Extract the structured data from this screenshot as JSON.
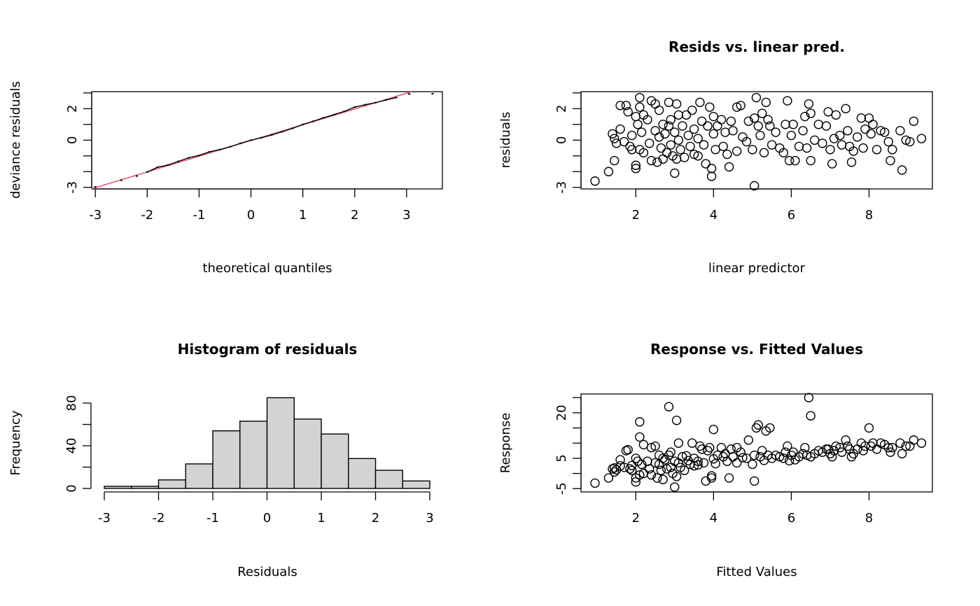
{
  "chart_data": [
    {
      "type": "line",
      "title": "",
      "xlabel": "theoretical quantiles",
      "ylabel": "deviance residuals",
      "xlim": [
        -3.07,
        3.69
      ],
      "ylim": [
        -3.1,
        3.08
      ],
      "xticks": [
        -3,
        -2,
        -1,
        0,
        1,
        2,
        3
      ],
      "xticklabels": [
        "-3",
        "-2",
        "-1",
        "0",
        "1",
        "2",
        "3"
      ],
      "yticks": [
        -3,
        -2,
        -1,
        0,
        1,
        2,
        3
      ],
      "yticklabels": {
        "-3": "-3",
        "0": "0",
        "2": "2"
      },
      "reference_line": {
        "intercept": -0.02,
        "slope": 1.0,
        "color": "#DF536B"
      },
      "points": [
        [
          -3.0,
          -2.97
        ],
        [
          -2.5,
          -2.55
        ],
        [
          -2.2,
          -2.28
        ],
        [
          -2.0,
          -2.03
        ],
        [
          -1.8,
          -1.72
        ],
        [
          -1.6,
          -1.58
        ],
        [
          -1.4,
          -1.35
        ],
        [
          -1.2,
          -1.12
        ],
        [
          -1.0,
          -0.97
        ],
        [
          -0.8,
          -0.74
        ],
        [
          -0.6,
          -0.6
        ],
        [
          -0.4,
          -0.42
        ],
        [
          -0.2,
          -0.2
        ],
        [
          0,
          0.0
        ],
        [
          0.2,
          0.15
        ],
        [
          0.4,
          0.33
        ],
        [
          0.6,
          0.53
        ],
        [
          0.8,
          0.75
        ],
        [
          1.0,
          1.0
        ],
        [
          1.2,
          1.2
        ],
        [
          1.4,
          1.42
        ],
        [
          1.6,
          1.62
        ],
        [
          1.8,
          1.83
        ],
        [
          2.0,
          2.1
        ],
        [
          2.2,
          2.25
        ],
        [
          2.4,
          2.38
        ],
        [
          2.6,
          2.55
        ],
        [
          2.8,
          2.7
        ],
        [
          3.05,
          2.93
        ],
        [
          3.5,
          2.95
        ]
      ]
    },
    {
      "type": "scatter",
      "title": "Resids vs. linear pred.",
      "xlabel": "linear predictor",
      "ylabel": "residuals",
      "xlim": [
        0.59,
        9.63
      ],
      "ylim": [
        -3.1,
        3.08
      ],
      "xticks": [
        2,
        4,
        6,
        8
      ],
      "xticklabels": [
        "2",
        "4",
        "6",
        "8"
      ],
      "yticks": [
        -3,
        -2,
        -1,
        0,
        1,
        2,
        3
      ],
      "yticklabels": {
        "-3": "-3",
        "0": "0",
        "2": "2"
      }
    },
    {
      "type": "bar",
      "title": "Histogram of residuals",
      "xlabel": "Residuals",
      "ylabel": "Frequency",
      "bin_edges": [
        -3,
        -2.5,
        -2,
        -1.5,
        -1,
        -0.5,
        0,
        0.5,
        1,
        1.5,
        2,
        2.5,
        3
      ],
      "values": [
        2,
        2,
        8,
        23,
        54,
        63,
        85,
        65,
        51,
        28,
        17,
        7
      ],
      "bar_color": "#D3D3D3",
      "xlim": [
        -3,
        3
      ],
      "ylim": [
        0,
        80
      ],
      "xticks": [
        -3,
        -2,
        -1,
        0,
        1,
        2,
        3
      ],
      "xticklabels": [
        "-3",
        "-2",
        "-1",
        "0",
        "1",
        "2",
        "3"
      ],
      "yticks": [
        0,
        20,
        40,
        60,
        80
      ],
      "yticklabels": {
        "0": "0",
        "40": "40",
        "80": "80"
      }
    },
    {
      "type": "scatter",
      "title": "Response vs. Fitted Values",
      "xlabel": "Fitted Values",
      "ylabel": "Response",
      "xlim": [
        0.59,
        9.63
      ],
      "ylim": [
        -6.1,
        26.2
      ],
      "xticks": [
        2,
        4,
        6,
        8
      ],
      "xticklabels": [
        "2",
        "4",
        "6",
        "8"
      ],
      "yticks": [
        -5,
        0,
        5,
        10,
        15,
        20,
        25
      ],
      "yticklabels": {
        "-5": "-5",
        "5": "5",
        "20": "20"
      }
    }
  ],
  "observations_fitted_resid_response": [
    [
      0.95,
      -2.6,
      -3.2
    ],
    [
      1.3,
      -2.0,
      -1.5
    ],
    [
      1.45,
      -1.3,
      0.5
    ],
    [
      1.4,
      0.4,
      1.5
    ],
    [
      1.45,
      0.1,
      1.8
    ],
    [
      1.5,
      -0.2,
      1.2
    ],
    [
      1.6,
      2.2,
      4.5
    ],
    [
      1.6,
      0.7,
      2.5
    ],
    [
      1.7,
      -0.1,
      2.0
    ],
    [
      1.75,
      2.2,
      7.5
    ],
    [
      1.8,
      1.8,
      7.8
    ],
    [
      1.85,
      -0.4,
      1.5
    ],
    [
      1.9,
      -0.6,
      1.0
    ],
    [
      1.9,
      0.3,
      2.6
    ],
    [
      2.0,
      -1.6,
      -2.8
    ],
    [
      2.0,
      -1.8,
      -1.5
    ],
    [
      2.0,
      1.5,
      5
    ],
    [
      2.05,
      1.0,
      4
    ],
    [
      2.1,
      2.1,
      12
    ],
    [
      2.1,
      2.7,
      17
    ],
    [
      2.1,
      -0.6,
      -0.5
    ],
    [
      2.15,
      0.5,
      3
    ],
    [
      2.2,
      -0.8,
      0
    ],
    [
      2.2,
      1.6,
      9.5
    ],
    [
      2.3,
      1.3,
      4
    ],
    [
      2.35,
      -0.2,
      1.5
    ],
    [
      2.4,
      2.5,
      8.5
    ],
    [
      2.4,
      -1.3,
      -0.5
    ],
    [
      2.5,
      0.6,
      3.5
    ],
    [
      2.5,
      2.3,
      9
    ],
    [
      2.55,
      -1.4,
      -1.5
    ],
    [
      2.6,
      1.9,
      6
    ],
    [
      2.6,
      0.2,
      3
    ],
    [
      2.65,
      -0.5,
      1
    ],
    [
      2.7,
      1.0,
      5
    ],
    [
      2.7,
      -1.2,
      -2
    ],
    [
      2.75,
      0.4,
      4.5
    ],
    [
      2.8,
      -0.8,
      1.5
    ],
    [
      2.85,
      2.4,
      22
    ],
    [
      2.85,
      0.9,
      6
    ],
    [
      2.9,
      -0.3,
      2
    ],
    [
      2.9,
      1.3,
      7
    ],
    [
      2.95,
      -1.0,
      0
    ],
    [
      3.0,
      -2.1,
      -4.5
    ],
    [
      3.0,
      0.5,
      4
    ],
    [
      3.05,
      -1.2,
      -1
    ],
    [
      3.05,
      2.3,
      17.5
    ],
    [
      3.1,
      1.6,
      10
    ],
    [
      3.1,
      0.0,
      3.5
    ],
    [
      3.15,
      -0.6,
      2
    ],
    [
      3.2,
      0.9,
      5.5
    ],
    [
      3.25,
      -1.1,
      1
    ],
    [
      3.3,
      1.6,
      5.8
    ],
    [
      3.35,
      0.3,
      4.2
    ],
    [
      3.4,
      -0.4,
      3
    ],
    [
      3.45,
      1.9,
      10
    ],
    [
      3.5,
      -0.9,
      2.5
    ],
    [
      3.5,
      0.7,
      5
    ],
    [
      3.6,
      0.1,
      4
    ],
    [
      3.6,
      -1.0,
      2.8
    ],
    [
      3.65,
      2.4,
      9
    ],
    [
      3.7,
      1.2,
      8
    ],
    [
      3.75,
      -0.3,
      3.5
    ],
    [
      3.8,
      -1.5,
      -2.5
    ],
    [
      3.85,
      0.9,
      7.5
    ],
    [
      3.9,
      2.1,
      8.5
    ],
    [
      3.95,
      -1.8,
      -1.5
    ],
    [
      3.95,
      -2.3,
      -0.8
    ],
    [
      4.0,
      0.4,
      4.8
    ],
    [
      4.0,
      1.5,
      14.5
    ],
    [
      4.05,
      -0.6,
      3.2
    ],
    [
      4.1,
      0.9,
      6
    ],
    [
      4.2,
      1.3,
      8.5
    ],
    [
      4.25,
      -0.4,
      5.5
    ],
    [
      4.3,
      0.5,
      6.5
    ],
    [
      4.35,
      -0.9,
      4
    ],
    [
      4.4,
      -1.7,
      -1.5
    ],
    [
      4.45,
      1.2,
      8
    ],
    [
      4.5,
      0.6,
      5.5
    ],
    [
      4.6,
      2.1,
      8.5
    ],
    [
      4.6,
      -0.7,
      3.5
    ],
    [
      4.7,
      2.2,
      7
    ],
    [
      4.75,
      0.2,
      5.2
    ],
    [
      4.85,
      -0.1,
      5
    ],
    [
      4.9,
      1.2,
      11
    ],
    [
      5.0,
      -0.6,
      3
    ],
    [
      5.05,
      1.4,
      6
    ],
    [
      5.05,
      -2.9,
      -2.5
    ],
    [
      5.1,
      2.7,
      15
    ],
    [
      5.15,
      0.9,
      16
    ],
    [
      5.2,
      0.3,
      5.5
    ],
    [
      5.25,
      1.7,
      7.5
    ],
    [
      5.3,
      -0.8,
      4.3
    ],
    [
      5.35,
      2.4,
      14
    ],
    [
      5.4,
      1.3,
      6
    ],
    [
      5.45,
      0.9,
      15
    ],
    [
      5.5,
      -0.3,
      5
    ],
    [
      5.6,
      0.5,
      6
    ],
    [
      5.7,
      -0.5,
      5.5
    ],
    [
      5.8,
      -0.8,
      5
    ],
    [
      5.85,
      1.0,
      7
    ],
    [
      5.9,
      2.5,
      9
    ],
    [
      5.95,
      -1.3,
      4.2
    ],
    [
      6.0,
      0.3,
      6
    ],
    [
      6.05,
      1.0,
      7
    ],
    [
      6.1,
      -1.3,
      4.5
    ],
    [
      6.2,
      -0.4,
      5.5
    ],
    [
      6.3,
      0.6,
      6.5
    ],
    [
      6.35,
      1.5,
      8.5
    ],
    [
      6.4,
      -0.5,
      6
    ],
    [
      6.45,
      2.3,
      25
    ],
    [
      6.5,
      -1.3,
      5.5
    ],
    [
      6.5,
      1.7,
      19
    ],
    [
      6.6,
      0.0,
      6.5
    ],
    [
      6.7,
      1.0,
      7.5
    ],
    [
      6.8,
      -0.2,
      7
    ],
    [
      6.9,
      0.9,
      8
    ],
    [
      6.95,
      1.8,
      8
    ],
    [
      7.0,
      -0.6,
      6.5
    ],
    [
      7.05,
      -1.5,
      5.5
    ],
    [
      7.1,
      0.1,
      7.5
    ],
    [
      7.15,
      1.6,
      9
    ],
    [
      7.25,
      0.3,
      8.5
    ],
    [
      7.3,
      -0.3,
      7
    ],
    [
      7.4,
      2.0,
      11
    ],
    [
      7.45,
      0.6,
      9
    ],
    [
      7.5,
      -0.4,
      8
    ],
    [
      7.55,
      -1.4,
      5.5
    ],
    [
      7.6,
      -0.7,
      6.5
    ],
    [
      7.7,
      0.2,
      8
    ],
    [
      7.8,
      1.4,
      10
    ],
    [
      7.85,
      -0.5,
      7.5
    ],
    [
      7.9,
      0.7,
      9
    ],
    [
      8.0,
      1.4,
      15
    ],
    [
      8.05,
      0.4,
      9
    ],
    [
      8.1,
      1.0,
      10
    ],
    [
      8.2,
      -0.6,
      8
    ],
    [
      8.3,
      0.6,
      10
    ],
    [
      8.4,
      0.5,
      9.5
    ],
    [
      8.5,
      -0.1,
      8.5
    ],
    [
      8.55,
      -1.3,
      7
    ],
    [
      8.6,
      -0.6,
      8.5
    ],
    [
      8.8,
      0.6,
      10
    ],
    [
      8.85,
      -1.9,
      6.5
    ],
    [
      8.95,
      0.0,
      9
    ],
    [
      9.05,
      -0.1,
      9
    ],
    [
      9.15,
      1.2,
      11
    ],
    [
      9.35,
      0.1,
      10
    ]
  ]
}
